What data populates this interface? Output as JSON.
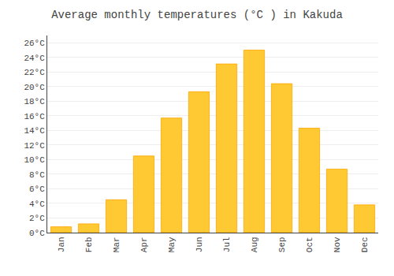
{
  "chart_data": {
    "type": "bar",
    "title": "Average monthly temperatures (°C ) in Kakuda",
    "categories": [
      "Jan",
      "Feb",
      "Mar",
      "Apr",
      "May",
      "Jun",
      "Jul",
      "Aug",
      "Sep",
      "Oct",
      "Nov",
      "Dec"
    ],
    "values": [
      0.8,
      1.2,
      4.5,
      10.5,
      15.7,
      19.3,
      23.1,
      25.0,
      20.4,
      14.3,
      8.7,
      3.8
    ],
    "color": "#FFC933",
    "ylim": [
      0,
      27
    ],
    "yticks": [
      {
        "value": 0,
        "label": "0°C"
      },
      {
        "value": 2,
        "label": "2°C"
      },
      {
        "value": 4,
        "label": "4°C"
      },
      {
        "value": 6,
        "label": "6°C"
      },
      {
        "value": 8,
        "label": "8°C"
      },
      {
        "value": 10,
        "label": "10°C"
      },
      {
        "value": 12,
        "label": "12°C"
      },
      {
        "value": 14,
        "label": "14°C"
      },
      {
        "value": 16,
        "label": "16°C"
      },
      {
        "value": 18,
        "label": "18°C"
      },
      {
        "value": 20,
        "label": "20°C"
      },
      {
        "value": 22,
        "label": "22°C"
      },
      {
        "value": 24,
        "label": "24°C"
      },
      {
        "value": 26,
        "label": "26°C"
      }
    ],
    "grid": true
  }
}
